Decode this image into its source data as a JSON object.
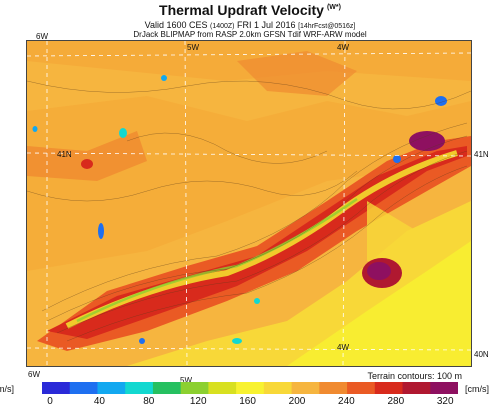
{
  "title": "Thermal Updraft Velocity",
  "title_unit": "(W*)",
  "valid_line": {
    "prefix": "Valid 1600 CES",
    "local_time": "(1400Z)",
    "date": "FRI 1 Jul 2016",
    "forecast": "[14hrFcst@0516z]"
  },
  "source_line": "DrJack BLIPMAP from RASP 2.0km GFSN Tdif WRF-ARW model",
  "map_labels": {
    "lon_6w_top": "6W",
    "lon_5w_top": "5W",
    "lon_4w_top": "4W",
    "lat_41n_left": "41N",
    "lat_41n_right": "41N",
    "lat_40n_right": "40N",
    "lon_4w_bottom": "4W",
    "lon_6w_bottom": "6W",
    "lon_5w_bottom": "5W"
  },
  "terrain_note": "Terrain contours: 100 m",
  "unit_left": "[cm/s]",
  "unit_right": "[cm/s]",
  "legend": {
    "ticks": [
      "0",
      "40",
      "80",
      "120",
      "160",
      "200",
      "240",
      "280",
      "320"
    ],
    "colors": [
      "#2a2ad8",
      "#1e6ff0",
      "#12a8f0",
      "#12d8d0",
      "#26c060",
      "#8cd030",
      "#d8e020",
      "#f8f230",
      "#f8d838",
      "#f6b53f",
      "#f08a30",
      "#ea5a24",
      "#d82a1c",
      "#b01830",
      "#8e1060"
    ]
  }
}
